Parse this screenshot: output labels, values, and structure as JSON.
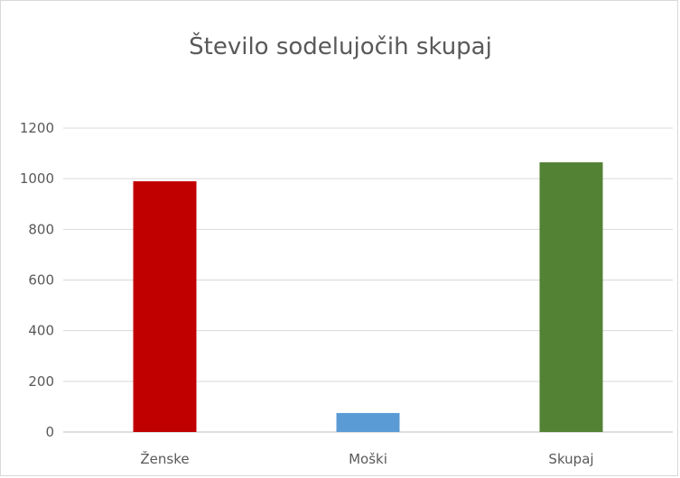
{
  "chart_data": {
    "type": "bar",
    "title": "Število sodelujočih skupaj",
    "categories": [
      "Ženske",
      "Moški",
      "Skupaj"
    ],
    "values": [
      990,
      75,
      1065
    ],
    "bar_colors": [
      "#c00000",
      "#5b9bd5",
      "#548235"
    ],
    "ylim": [
      0,
      1200
    ],
    "yticks": [
      "0",
      "200",
      "400",
      "600",
      "800",
      "1000",
      "1200"
    ],
    "grid": true,
    "legend": "none"
  }
}
